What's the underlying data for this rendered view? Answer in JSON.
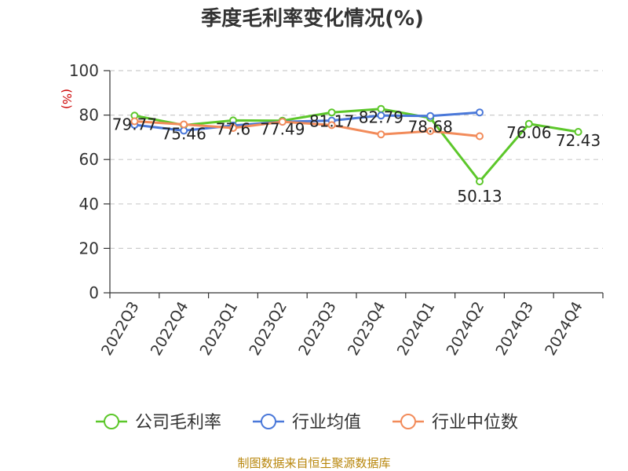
{
  "chart_data": {
    "type": "line",
    "title": "季度毛利率变化情况(%)",
    "ylabel": "(%)",
    "xlabel": "",
    "ylim": [
      0,
      100
    ],
    "yticks": [
      0,
      20,
      40,
      60,
      80,
      100
    ],
    "grid": true,
    "legend_position": "bottom",
    "categories": [
      "2022Q3",
      "2022Q4",
      "2023Q1",
      "2023Q2",
      "2023Q3",
      "2023Q4",
      "2024Q1",
      "2024Q2",
      "2024Q3",
      "2024Q4"
    ],
    "series": [
      {
        "name": "公司毛利率",
        "color": "#5cc72a",
        "values": [
          79.77,
          75.46,
          77.6,
          77.49,
          81.17,
          82.79,
          78.68,
          50.13,
          76.06,
          72.43
        ],
        "labels": [
          "79.77",
          "75.46",
          "77.6",
          "77.49",
          "81.17",
          "82.79",
          "78.68",
          "50.13",
          "76.06",
          "72.43"
        ]
      },
      {
        "name": "行业均值",
        "color": "#4a78d9",
        "values": [
          75.6,
          73.0,
          75.3,
          77.0,
          77.5,
          79.8,
          79.6,
          81.2,
          null,
          null
        ]
      },
      {
        "name": "行业中位数",
        "color": "#f28b5a",
        "values": [
          77.2,
          75.8,
          74.2,
          77.0,
          75.5,
          71.3,
          72.8,
          70.5,
          null,
          null
        ]
      }
    ],
    "source": "制图数据来自恒生聚源数据库"
  }
}
